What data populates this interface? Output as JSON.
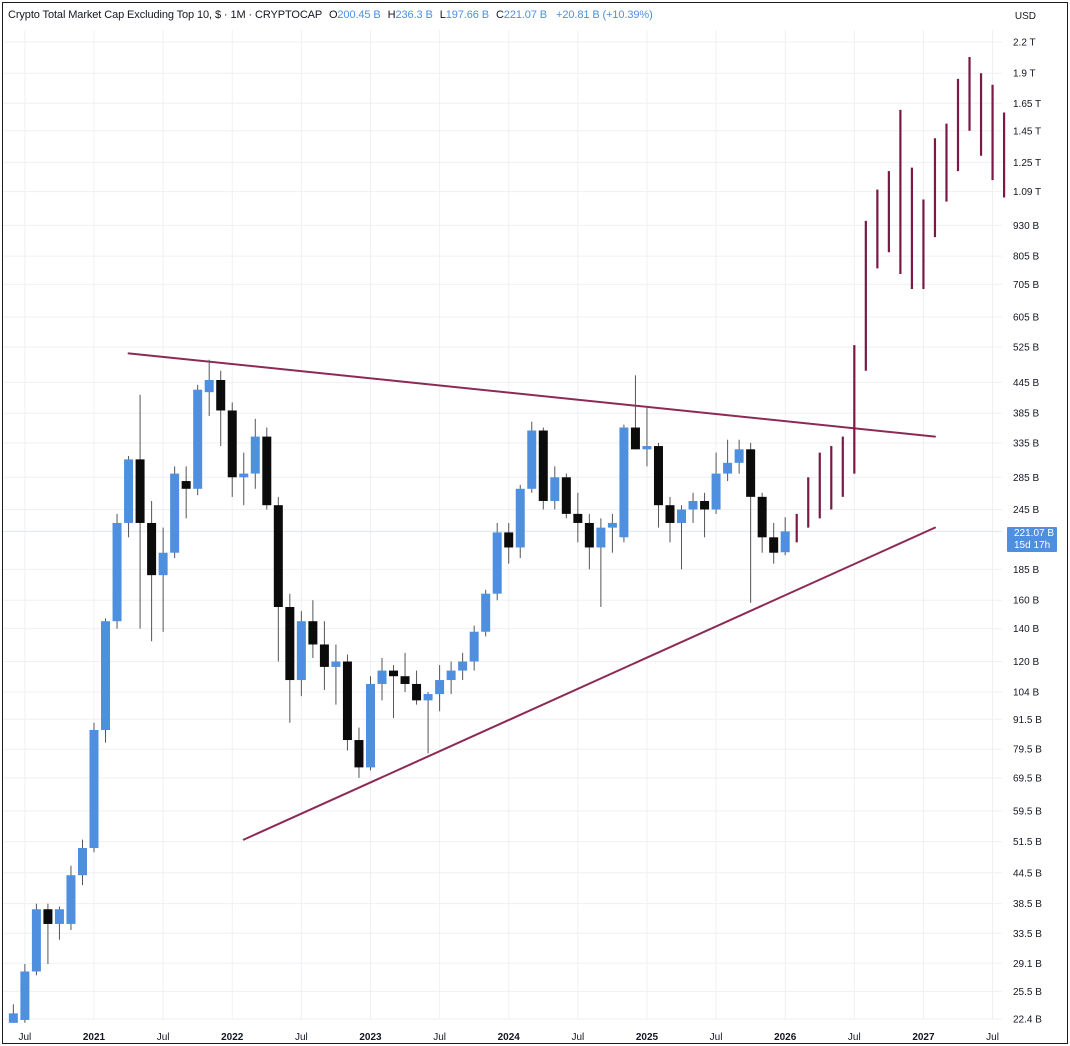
{
  "header": {
    "title": "Crypto Total Market Cap Excluding Top 10, $ · 1M · CRYPTOCAP",
    "o_label": "O",
    "o_value": "200.45 B",
    "h_label": "H",
    "h_value": "236.3 B",
    "l_label": "L",
    "l_value": "197.66 B",
    "c_label": "C",
    "c_value": "221.07 B",
    "change": "+20.81 B (+10.39%)"
  },
  "currency": "USD",
  "price_tag": {
    "price": "221.07 B",
    "countdown": "15d 17h"
  },
  "colors": {
    "up": "#4e8fe0",
    "down": "#0b0b0b",
    "projection": "#7a1846",
    "trendline": "#8c2a55",
    "gridline": "#eef0f3"
  },
  "chart_data": {
    "type": "candlestick",
    "title": "Crypto Total Market Cap Excluding Top 10, $ · 1M · CRYPTOCAP",
    "scale": "log",
    "y_unit": "USD",
    "ylim": [
      22.4,
      2200
    ],
    "y_ticks": [
      {
        "value": 2200,
        "label": "2.2 T"
      },
      {
        "value": 1900,
        "label": "1.9 T"
      },
      {
        "value": 1650,
        "label": "1.65 T"
      },
      {
        "value": 1450,
        "label": "1.45 T"
      },
      {
        "value": 1250,
        "label": "1.25 T"
      },
      {
        "value": 1090,
        "label": "1.09 T"
      },
      {
        "value": 930,
        "label": "930 B"
      },
      {
        "value": 805,
        "label": "805 B"
      },
      {
        "value": 705,
        "label": "705 B"
      },
      {
        "value": 605,
        "label": "605 B"
      },
      {
        "value": 525,
        "label": "525 B"
      },
      {
        "value": 445,
        "label": "445 B"
      },
      {
        "value": 385,
        "label": "385 B"
      },
      {
        "value": 335,
        "label": "335 B"
      },
      {
        "value": 285,
        "label": "285 B"
      },
      {
        "value": 245,
        "label": "245 B"
      },
      {
        "value": 185,
        "label": "185 B"
      },
      {
        "value": 160,
        "label": "160 B"
      },
      {
        "value": 140,
        "label": "140 B"
      },
      {
        "value": 120,
        "label": "120 B"
      },
      {
        "value": 104,
        "label": "104 B"
      },
      {
        "value": 91.5,
        "label": "91.5 B"
      },
      {
        "value": 79.5,
        "label": "79.5 B"
      },
      {
        "value": 69.5,
        "label": "69.5 B"
      },
      {
        "value": 59.5,
        "label": "59.5 B"
      },
      {
        "value": 51.5,
        "label": "51.5 B"
      },
      {
        "value": 44.5,
        "label": "44.5 B"
      },
      {
        "value": 38.5,
        "label": "38.5 B"
      },
      {
        "value": 33.5,
        "label": "33.5 B"
      },
      {
        "value": 29.1,
        "label": "29.1 B"
      },
      {
        "value": 25.5,
        "label": "25.5 B"
      },
      {
        "value": 22.4,
        "label": "22.4 B"
      }
    ],
    "x_ticks": [
      {
        "label": "Jul",
        "date": "2020-07",
        "year": false
      },
      {
        "label": "2021",
        "date": "2021-01",
        "year": true
      },
      {
        "label": "Jul",
        "date": "2021-07",
        "year": false
      },
      {
        "label": "2022",
        "date": "2022-01",
        "year": true
      },
      {
        "label": "Jul",
        "date": "2022-07",
        "year": false
      },
      {
        "label": "2023",
        "date": "2023-01",
        "year": true
      },
      {
        "label": "Jul",
        "date": "2023-07",
        "year": false
      },
      {
        "label": "2024",
        "date": "2024-01",
        "year": true
      },
      {
        "label": "Jul",
        "date": "2024-07",
        "year": false
      },
      {
        "label": "2025",
        "date": "2025-01",
        "year": true
      },
      {
        "label": "Jul",
        "date": "2025-07",
        "year": false
      },
      {
        "label": "2026",
        "date": "2026-01",
        "year": true
      },
      {
        "label": "Jul",
        "date": "2026-07",
        "year": false
      },
      {
        "label": "2027",
        "date": "2027-01",
        "year": true
      },
      {
        "label": "Jul",
        "date": "2027-07",
        "year": false
      }
    ],
    "candles": [
      {
        "date": "2020-06",
        "o": 22,
        "h": 24,
        "l": 22,
        "c": 23
      },
      {
        "date": "2020-07",
        "o": 22.3,
        "h": 29,
        "l": 22,
        "c": 28
      },
      {
        "date": "2020-08",
        "o": 28,
        "h": 38.5,
        "l": 27.5,
        "c": 37.5
      },
      {
        "date": "2020-09",
        "o": 37.5,
        "h": 38.5,
        "l": 29,
        "c": 35
      },
      {
        "date": "2020-10",
        "o": 35,
        "h": 38,
        "l": 32.5,
        "c": 37.5
      },
      {
        "date": "2020-11",
        "o": 35,
        "h": 46,
        "l": 34,
        "c": 44
      },
      {
        "date": "2020-12",
        "o": 44,
        "h": 52,
        "l": 42,
        "c": 50
      },
      {
        "date": "2021-01",
        "o": 50,
        "h": 90,
        "l": 49,
        "c": 87
      },
      {
        "date": "2021-02",
        "o": 87,
        "h": 147,
        "l": 82,
        "c": 145
      },
      {
        "date": "2021-03",
        "o": 145,
        "h": 240,
        "l": 140,
        "c": 230
      },
      {
        "date": "2021-04",
        "o": 230,
        "h": 315,
        "l": 215,
        "c": 310
      },
      {
        "date": "2021-05",
        "o": 310,
        "h": 420,
        "l": 140,
        "c": 230
      },
      {
        "date": "2021-06",
        "o": 230,
        "h": 255,
        "l": 132,
        "c": 180
      },
      {
        "date": "2021-07",
        "o": 180,
        "h": 225,
        "l": 138,
        "c": 200
      },
      {
        "date": "2021-08",
        "o": 200,
        "h": 300,
        "l": 195,
        "c": 290
      },
      {
        "date": "2021-09",
        "o": 280,
        "h": 300,
        "l": 235,
        "c": 270
      },
      {
        "date": "2021-10",
        "o": 270,
        "h": 440,
        "l": 262,
        "c": 430
      },
      {
        "date": "2021-11",
        "o": 425,
        "h": 495,
        "l": 380,
        "c": 450
      },
      {
        "date": "2021-12",
        "o": 450,
        "h": 470,
        "l": 330,
        "c": 390
      },
      {
        "date": "2022-01",
        "o": 390,
        "h": 405,
        "l": 260,
        "c": 285
      },
      {
        "date": "2022-02",
        "o": 285,
        "h": 320,
        "l": 250,
        "c": 290
      },
      {
        "date": "2022-03",
        "o": 290,
        "h": 375,
        "l": 270,
        "c": 345
      },
      {
        "date": "2022-04",
        "o": 345,
        "h": 360,
        "l": 245,
        "c": 250
      },
      {
        "date": "2022-05",
        "o": 250,
        "h": 260,
        "l": 120,
        "c": 155
      },
      {
        "date": "2022-06",
        "o": 155,
        "h": 165,
        "l": 90,
        "c": 110
      },
      {
        "date": "2022-07",
        "o": 110,
        "h": 152,
        "l": 102,
        "c": 145
      },
      {
        "date": "2022-08",
        "o": 145,
        "h": 160,
        "l": 122,
        "c": 130
      },
      {
        "date": "2022-09",
        "o": 130,
        "h": 145,
        "l": 105,
        "c": 117
      },
      {
        "date": "2022-10",
        "o": 117,
        "h": 130,
        "l": 98,
        "c": 120
      },
      {
        "date": "2022-11",
        "o": 120,
        "h": 124,
        "l": 79,
        "c": 83
      },
      {
        "date": "2022-12",
        "o": 83,
        "h": 88,
        "l": 69.5,
        "c": 73
      },
      {
        "date": "2023-01",
        "o": 73,
        "h": 112,
        "l": 72,
        "c": 108
      },
      {
        "date": "2023-02",
        "o": 108,
        "h": 122,
        "l": 100,
        "c": 115
      },
      {
        "date": "2023-03",
        "o": 115,
        "h": 118,
        "l": 92,
        "c": 112
      },
      {
        "date": "2023-04",
        "o": 112,
        "h": 125,
        "l": 104,
        "c": 108
      },
      {
        "date": "2023-05",
        "o": 108,
        "h": 115,
        "l": 98,
        "c": 100
      },
      {
        "date": "2023-06",
        "o": 100,
        "h": 104,
        "l": 78,
        "c": 103
      },
      {
        "date": "2023-07",
        "o": 103,
        "h": 118,
        "l": 95,
        "c": 110
      },
      {
        "date": "2023-08",
        "o": 110,
        "h": 120,
        "l": 103,
        "c": 115
      },
      {
        "date": "2023-09",
        "o": 115,
        "h": 125,
        "l": 110,
        "c": 120
      },
      {
        "date": "2023-10",
        "o": 120,
        "h": 142,
        "l": 115,
        "c": 138
      },
      {
        "date": "2023-11",
        "o": 138,
        "h": 168,
        "l": 135,
        "c": 165
      },
      {
        "date": "2023-12",
        "o": 165,
        "h": 230,
        "l": 160,
        "c": 220
      },
      {
        "date": "2024-01",
        "o": 220,
        "h": 230,
        "l": 190,
        "c": 205
      },
      {
        "date": "2024-02",
        "o": 205,
        "h": 275,
        "l": 195,
        "c": 270
      },
      {
        "date": "2024-03",
        "o": 270,
        "h": 370,
        "l": 265,
        "c": 355
      },
      {
        "date": "2024-04",
        "o": 355,
        "h": 360,
        "l": 245,
        "c": 255
      },
      {
        "date": "2024-05",
        "o": 255,
        "h": 300,
        "l": 245,
        "c": 285
      },
      {
        "date": "2024-06",
        "o": 285,
        "h": 290,
        "l": 235,
        "c": 240
      },
      {
        "date": "2024-07",
        "o": 240,
        "h": 265,
        "l": 210,
        "c": 230
      },
      {
        "date": "2024-08",
        "o": 230,
        "h": 240,
        "l": 185,
        "c": 205
      },
      {
        "date": "2024-09",
        "o": 205,
        "h": 235,
        "l": 155,
        "c": 225
      },
      {
        "date": "2024-10",
        "o": 225,
        "h": 240,
        "l": 200,
        "c": 230
      },
      {
        "date": "2024-11",
        "o": 215,
        "h": 365,
        "l": 210,
        "c": 360
      },
      {
        "date": "2024-12",
        "o": 360,
        "h": 460,
        "l": 325,
        "c": 325
      },
      {
        "date": "2025-01",
        "o": 325,
        "h": 395,
        "l": 300,
        "c": 330
      },
      {
        "date": "2025-02",
        "o": 330,
        "h": 335,
        "l": 225,
        "c": 250
      },
      {
        "date": "2025-03",
        "o": 250,
        "h": 260,
        "l": 210,
        "c": 230
      },
      {
        "date": "2025-04",
        "o": 230,
        "h": 250,
        "l": 185,
        "c": 245
      },
      {
        "date": "2025-05",
        "o": 245,
        "h": 265,
        "l": 230,
        "c": 255
      },
      {
        "date": "2025-06",
        "o": 255,
        "h": 265,
        "l": 215,
        "c": 245
      },
      {
        "date": "2025-07",
        "o": 245,
        "h": 320,
        "l": 240,
        "c": 290
      },
      {
        "date": "2025-08",
        "o": 290,
        "h": 340,
        "l": 280,
        "c": 305
      },
      {
        "date": "2025-09",
        "o": 305,
        "h": 340,
        "l": 290,
        "c": 325
      },
      {
        "date": "2025-10",
        "o": 325,
        "h": 335,
        "l": 158,
        "c": 260
      },
      {
        "date": "2025-11",
        "o": 260,
        "h": 265,
        "l": 200,
        "c": 215
      },
      {
        "date": "2025-12",
        "o": 215,
        "h": 230,
        "l": 190,
        "c": 200
      },
      {
        "date": "2026-01",
        "o": 200.45,
        "h": 236.3,
        "l": 197.66,
        "c": 221.07
      }
    ],
    "projection_bars": [
      {
        "date": "2026-02",
        "low": 210,
        "high": 240
      },
      {
        "date": "2026-03",
        "low": 225,
        "high": 285
      },
      {
        "date": "2026-04",
        "low": 235,
        "high": 320
      },
      {
        "date": "2026-05",
        "low": 245,
        "high": 330
      },
      {
        "date": "2026-06",
        "low": 260,
        "high": 345
      },
      {
        "date": "2026-07",
        "low": 290,
        "high": 530
      },
      {
        "date": "2026-08",
        "low": 470,
        "high": 950
      },
      {
        "date": "2026-09",
        "low": 760,
        "high": 1100
      },
      {
        "date": "2026-10",
        "low": 820,
        "high": 1200
      },
      {
        "date": "2026-11",
        "low": 740,
        "high": 1600
      },
      {
        "date": "2026-12",
        "low": 690,
        "high": 1220
      },
      {
        "date": "2027-01",
        "low": 690,
        "high": 1050
      },
      {
        "date": "2027-02",
        "low": 880,
        "high": 1400
      },
      {
        "date": "2027-03",
        "low": 1040,
        "high": 1500
      },
      {
        "date": "2027-04",
        "low": 1200,
        "high": 1850
      },
      {
        "date": "2027-05",
        "low": 1450,
        "high": 2050
      },
      {
        "date": "2027-06",
        "low": 1290,
        "high": 1900
      },
      {
        "date": "2027-07",
        "low": 1150,
        "high": 1800
      },
      {
        "date": "2027-08",
        "low": 1060,
        "high": 1580
      }
    ],
    "trendlines": [
      {
        "name": "resistance",
        "from": {
          "date": "2021-04",
          "value": 510
        },
        "to": {
          "date": "2027-02",
          "value": 345
        }
      },
      {
        "name": "support",
        "from": {
          "date": "2022-02",
          "value": 52
        },
        "to": {
          "date": "2027-02",
          "value": 225
        }
      }
    ],
    "last_price": 221.07
  }
}
